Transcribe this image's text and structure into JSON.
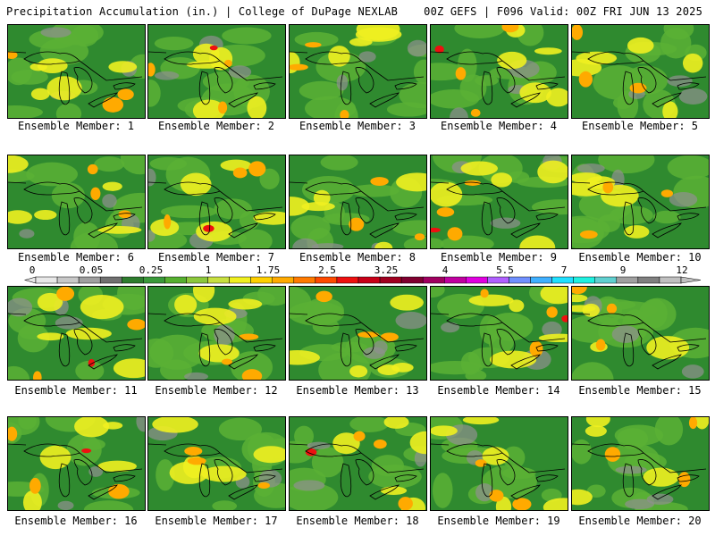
{
  "header": {
    "left": "Precipitation Accumulation (in.) | College of DuPage NEXLAB",
    "right": "00Z GEFS | F096 Valid: 00Z FRI JUN 13 2025"
  },
  "members": [
    {
      "label": "Ensemble Member: 1"
    },
    {
      "label": "Ensemble Member: 2"
    },
    {
      "label": "Ensemble Member: 3"
    },
    {
      "label": "Ensemble Member: 4"
    },
    {
      "label": "Ensemble Member: 5"
    },
    {
      "label": "Ensemble Member: 6"
    },
    {
      "label": "Ensemble Member: 7"
    },
    {
      "label": "Ensemble Member: 8"
    },
    {
      "label": "Ensemble Member: 9"
    },
    {
      "label": "Ensemble Member: 10"
    },
    {
      "label": "Ensemble Member: 11"
    },
    {
      "label": "Ensemble Member: 12"
    },
    {
      "label": "Ensemble Member: 13"
    },
    {
      "label": "Ensemble Member: 14"
    },
    {
      "label": "Ensemble Member: 15"
    },
    {
      "label": "Ensemble Member: 16"
    },
    {
      "label": "Ensemble Member: 17"
    },
    {
      "label": "Ensemble Member: 18"
    },
    {
      "label": "Ensemble Member: 19"
    },
    {
      "label": "Ensemble Member: 20"
    }
  ],
  "colorbar": {
    "tick_labels": [
      "0",
      "0.05",
      "0.25",
      "1",
      "1.75",
      "2.5",
      "3.25",
      "4",
      "5.5",
      "7",
      "9",
      "12"
    ],
    "colors": [
      "#e8e8e8",
      "#c8c8c8",
      "#a0a0a0",
      "#707070",
      "#2e7d2e",
      "#3a993a",
      "#56b030",
      "#8cc83c",
      "#c8e040",
      "#f0f020",
      "#ffd000",
      "#ffaa00",
      "#ff7a00",
      "#ff4a00",
      "#ee1010",
      "#c80018",
      "#a00020",
      "#800030",
      "#a00060",
      "#c000a0",
      "#e000e0",
      "#b060ff",
      "#7090ff",
      "#40b0ff",
      "#20e0ff",
      "#20f0e0",
      "#60d0d0",
      "#a0a0a0",
      "#808080",
      "#c0c0c0"
    ]
  },
  "colors": {
    "base_green": "#2f8a2f",
    "light_green": "#5bb035",
    "yellow": "#f0f020",
    "orange": "#ffaa00",
    "red": "#ee1010",
    "gray": "#909090"
  }
}
